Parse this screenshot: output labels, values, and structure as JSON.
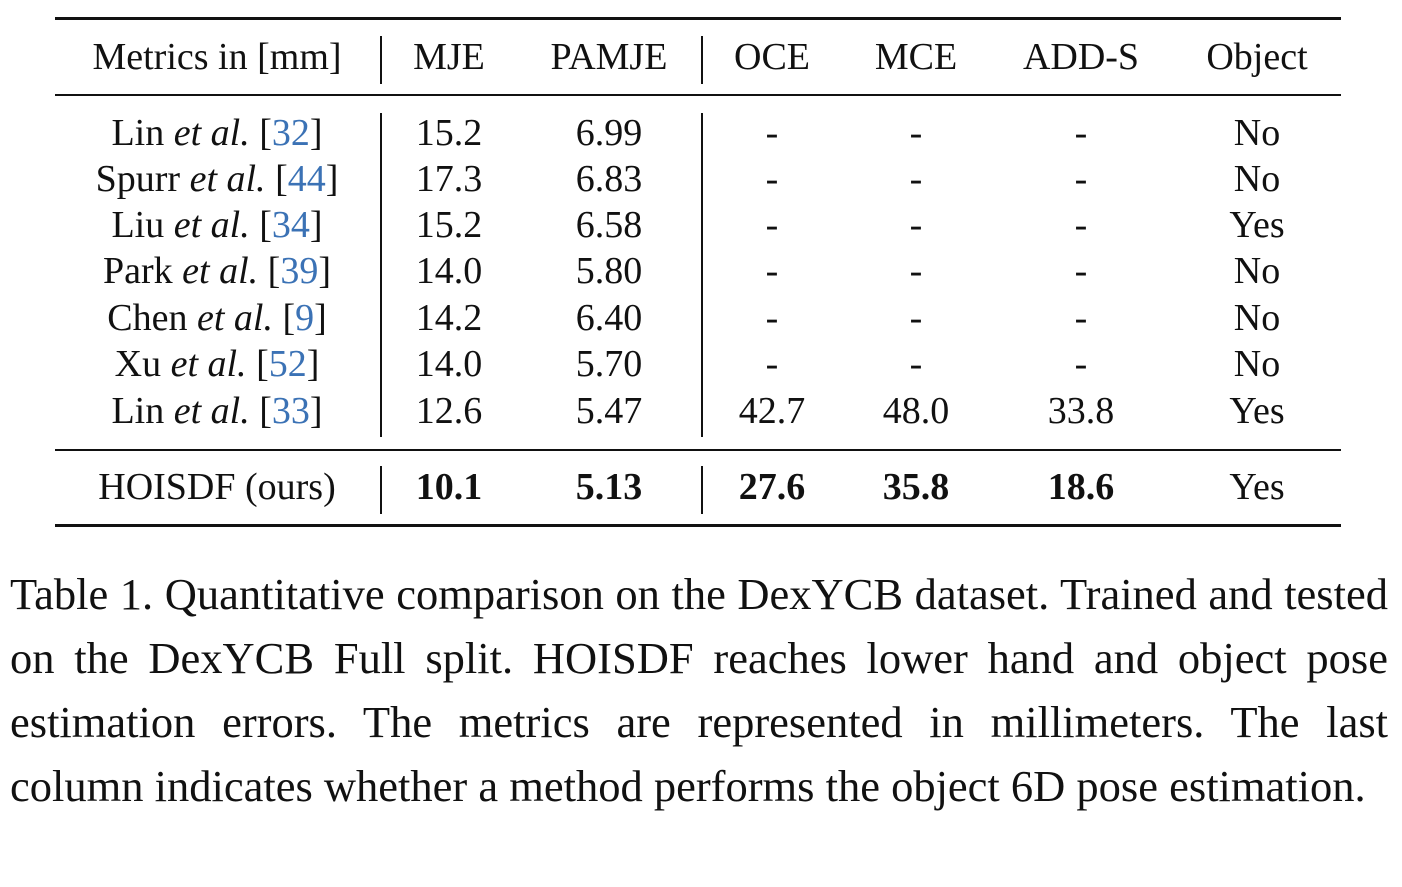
{
  "table": {
    "headers": {
      "method": "Metrics in [mm]",
      "mje": "MJE",
      "pamje": "PAMJE",
      "oce": "OCE",
      "mce": "MCE",
      "adds": "ADD-S",
      "object": "Object"
    },
    "rows": [
      {
        "author": "Lin",
        "etal": "et al.",
        "ref": "32",
        "mje": "15.2",
        "pamje": "6.99",
        "oce": "-",
        "mce": "-",
        "adds": "-",
        "object": "No"
      },
      {
        "author": "Spurr",
        "etal": "et al.",
        "ref": "44",
        "mje": "17.3",
        "pamje": "6.83",
        "oce": "-",
        "mce": "-",
        "adds": "-",
        "object": "No"
      },
      {
        "author": "Liu",
        "etal": "et al.",
        "ref": "34",
        "mje": "15.2",
        "pamje": "6.58",
        "oce": "-",
        "mce": "-",
        "adds": "-",
        "object": "Yes"
      },
      {
        "author": "Park",
        "etal": "et al.",
        "ref": "39",
        "mje": "14.0",
        "pamje": "5.80",
        "oce": "-",
        "mce": "-",
        "adds": "-",
        "object": "No"
      },
      {
        "author": "Chen",
        "etal": "et al.",
        "ref": "9",
        "mje": "14.2",
        "pamje": "6.40",
        "oce": "-",
        "mce": "-",
        "adds": "-",
        "object": "No"
      },
      {
        "author": "Xu",
        "etal": "et al.",
        "ref": "52",
        "mje": "14.0",
        "pamje": "5.70",
        "oce": "-",
        "mce": "-",
        "adds": "-",
        "object": "No"
      },
      {
        "author": "Lin",
        "etal": "et al.",
        "ref": "33",
        "mje": "12.6",
        "pamje": "5.47",
        "oce": "42.7",
        "mce": "48.0",
        "adds": "33.8",
        "object": "Yes"
      }
    ],
    "ours": {
      "method": "HOISDF (ours)",
      "mje": "10.1",
      "pamje": "5.13",
      "oce": "27.6",
      "mce": "35.8",
      "adds": "18.6",
      "object": "Yes"
    }
  },
  "caption": "Table 1. Quantitative comparison on the DexYCB dataset. Trained and tested on the DexYCB Full split. HOISDF reaches lower hand and object pose estimation errors. The metrics are represented in millimeters. The last column indicates whether a method performs the object 6D pose estimation."
}
